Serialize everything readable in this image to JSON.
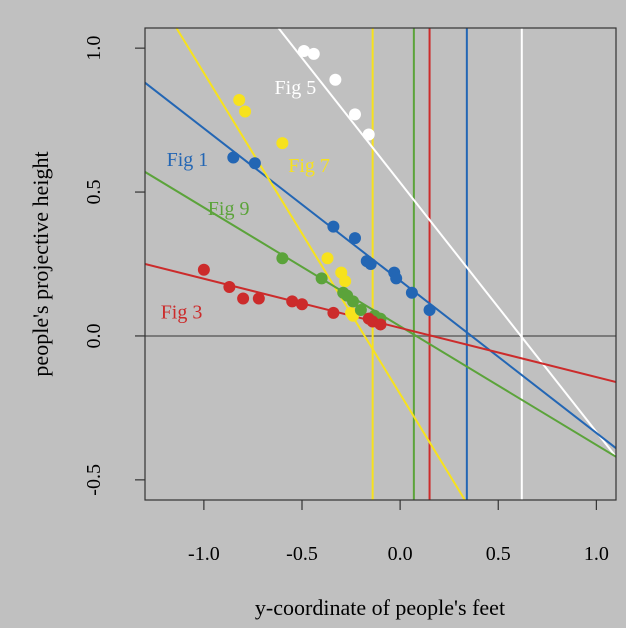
{
  "chart_data": {
    "type": "scatter",
    "title": "",
    "xlabel": "y-coordinate of people's feet",
    "ylabel": "people's projective height",
    "xlim": [
      -1.3,
      1.1
    ],
    "ylim": [
      -0.57,
      1.07
    ],
    "x_ticks": [
      -1.0,
      -0.5,
      0.0,
      0.5,
      1.0
    ],
    "x_tick_labels": [
      "-1.0",
      "-0.5",
      "0.0",
      "0.5",
      "1.0"
    ],
    "y_ticks": [
      -0.5,
      0.0,
      0.5,
      1.0
    ],
    "y_tick_labels": [
      "-0.5",
      "0.0",
      "0.5",
      "1.0"
    ],
    "grid": false,
    "background": "#c0c0c0",
    "zero_line_color": "#7a7a7a",
    "series": [
      {
        "name": "Fig 5",
        "color": "#ffffff",
        "label_pos": [
          -0.64,
          0.84
        ],
        "points": [
          [
            -0.49,
            0.99
          ],
          [
            -0.44,
            0.98
          ],
          [
            -0.33,
            0.89
          ],
          [
            -0.23,
            0.77
          ],
          [
            -0.16,
            0.7
          ]
        ],
        "fit_line": [
          [
            -0.62,
            1.07
          ],
          [
            1.1,
            -0.42
          ]
        ],
        "vline": 0.62
      },
      {
        "name": "Fig 1",
        "color": "#2366b4",
        "label_pos": [
          -1.19,
          0.59
        ],
        "points": [
          [
            -0.85,
            0.62
          ],
          [
            -0.74,
            0.6
          ],
          [
            -0.34,
            0.38
          ],
          [
            -0.23,
            0.34
          ],
          [
            -0.17,
            0.26
          ],
          [
            -0.15,
            0.25
          ],
          [
            -0.03,
            0.22
          ],
          [
            -0.02,
            0.2
          ],
          [
            0.06,
            0.15
          ],
          [
            0.15,
            0.09
          ]
        ],
        "fit_line": [
          [
            -1.3,
            0.88
          ],
          [
            1.1,
            -0.39
          ]
        ],
        "vline": 0.34
      },
      {
        "name": "Fig 7",
        "color": "#f7e21d",
        "label_pos": [
          -0.57,
          0.57
        ],
        "points": [
          [
            -0.82,
            0.82
          ],
          [
            -0.79,
            0.78
          ],
          [
            -0.6,
            0.67
          ],
          [
            -0.37,
            0.27
          ],
          [
            -0.3,
            0.22
          ],
          [
            -0.28,
            0.19
          ],
          [
            -0.25,
            0.08
          ],
          [
            -0.24,
            0.07
          ]
        ],
        "fit_line": [
          [
            -1.14,
            1.07
          ],
          [
            0.33,
            -0.57
          ]
        ],
        "vline": -0.14
      },
      {
        "name": "Fig 9",
        "color": "#5ba33a",
        "label_pos": [
          -0.98,
          0.42
        ],
        "points": [
          [
            -0.6,
            0.27
          ],
          [
            -0.4,
            0.2
          ],
          [
            -0.29,
            0.15
          ],
          [
            -0.27,
            0.14
          ],
          [
            -0.24,
            0.12
          ],
          [
            -0.2,
            0.09
          ],
          [
            -0.13,
            0.07
          ],
          [
            -0.1,
            0.06
          ]
        ],
        "fit_line": [
          [
            -1.3,
            0.57
          ],
          [
            1.1,
            -0.42
          ]
        ],
        "vline": 0.07
      },
      {
        "name": "Fig 3",
        "color": "#cc2b2b",
        "label_pos": [
          -1.22,
          0.06
        ],
        "points": [
          [
            -1.0,
            0.23
          ],
          [
            -0.87,
            0.17
          ],
          [
            -0.8,
            0.13
          ],
          [
            -0.72,
            0.13
          ],
          [
            -0.55,
            0.12
          ],
          [
            -0.5,
            0.11
          ],
          [
            -0.34,
            0.08
          ],
          [
            -0.16,
            0.06
          ],
          [
            -0.14,
            0.05
          ],
          [
            -0.1,
            0.04
          ]
        ],
        "fit_line": [
          [
            -1.3,
            0.25
          ],
          [
            1.1,
            -0.16
          ]
        ],
        "vline": 0.15
      }
    ]
  }
}
